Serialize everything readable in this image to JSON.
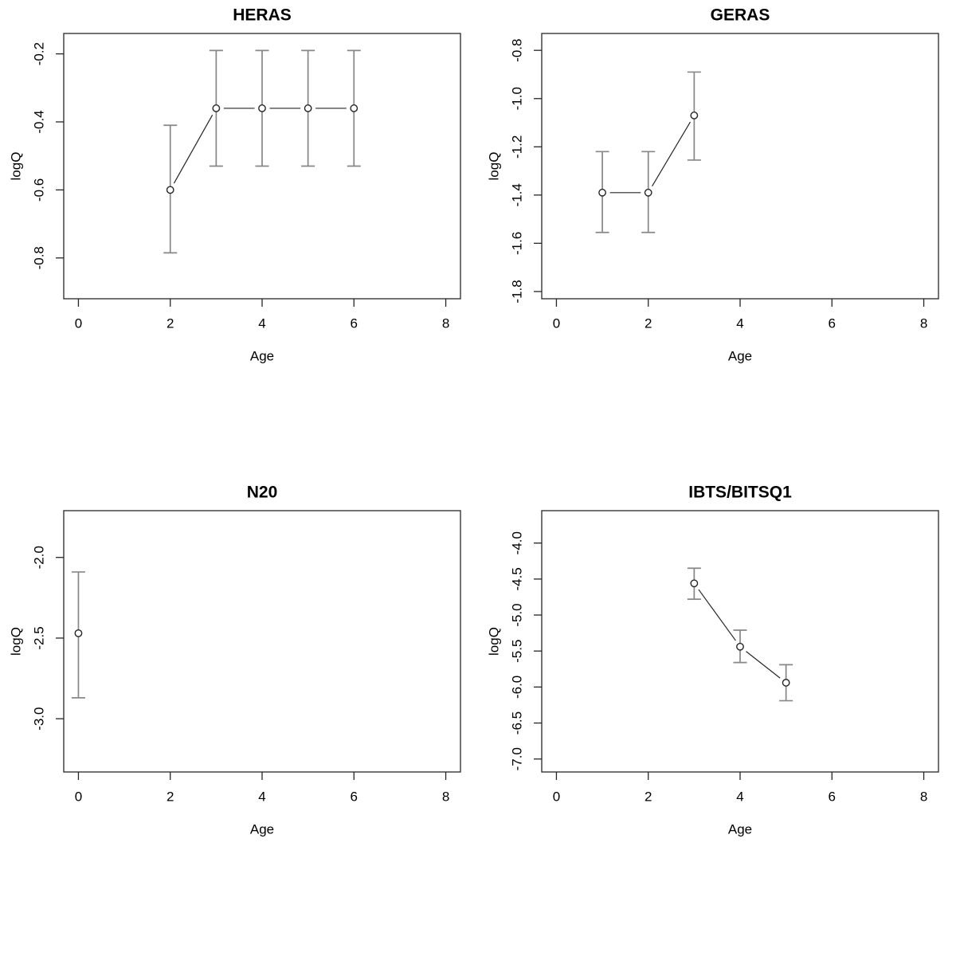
{
  "figure": {
    "background": "#ffffff",
    "frame_color": "#262626",
    "errorbar_color": "#878787",
    "point_color": "#262626",
    "point_fill": "#ffffff",
    "x_axis_label": "Age",
    "y_axis_label": "logQ"
  },
  "chart_data": [
    {
      "type": "scatter",
      "title": "HERAS",
      "xlabel": "Age",
      "ylabel": "logQ",
      "x": [
        2,
        3,
        4,
        5,
        6
      ],
      "y": [
        -0.6,
        -0.36,
        -0.36,
        -0.36,
        -0.36
      ],
      "y_lo": [
        -0.785,
        -0.53,
        -0.53,
        -0.53,
        -0.53
      ],
      "y_hi": [
        -0.41,
        -0.19,
        -0.19,
        -0.19,
        -0.19
      ],
      "x_ticks": [
        0,
        2,
        4,
        6,
        8
      ],
      "y_ticks": [
        -0.2,
        -0.4,
        -0.6,
        -0.8
      ],
      "xlim": [
        -0.32,
        8.32
      ],
      "ylim": [
        -0.92,
        -0.14
      ],
      "error_bars": true,
      "connect_points": true,
      "grid": false,
      "legend": "none"
    },
    {
      "type": "scatter",
      "title": "GERAS",
      "xlabel": "Age",
      "ylabel": "logQ",
      "x": [
        1,
        2,
        3
      ],
      "y": [
        -1.39,
        -1.39,
        -1.07
      ],
      "y_lo": [
        -1.555,
        -1.555,
        -1.255
      ],
      "y_hi": [
        -1.22,
        -1.22,
        -0.89
      ],
      "x_ticks": [
        0,
        2,
        4,
        6,
        8
      ],
      "y_ticks": [
        -0.8,
        -1.0,
        -1.2,
        -1.4,
        -1.6,
        -1.8
      ],
      "xlim": [
        -0.32,
        8.32
      ],
      "ylim": [
        -1.83,
        -0.73
      ],
      "error_bars": true,
      "connect_points": true,
      "grid": false,
      "legend": "none"
    },
    {
      "type": "scatter",
      "title": "N20",
      "xlabel": "Age",
      "ylabel": "logQ",
      "x": [
        0
      ],
      "y": [
        -2.47
      ],
      "y_lo": [
        -2.87
      ],
      "y_hi": [
        -2.09
      ],
      "x_ticks": [
        0,
        2,
        4,
        6,
        8
      ],
      "y_ticks": [
        -2.0,
        -2.5,
        -3.0
      ],
      "xlim": [
        -0.32,
        8.32
      ],
      "ylim": [
        -3.33,
        -1.71
      ],
      "error_bars": true,
      "connect_points": true,
      "grid": false,
      "legend": "none"
    },
    {
      "type": "scatter",
      "title": "IBTS/BITSQ1",
      "xlabel": "Age",
      "ylabel": "logQ",
      "x": [
        3,
        4,
        5
      ],
      "y": [
        -4.56,
        -5.44,
        -5.94
      ],
      "y_lo": [
        -4.78,
        -5.66,
        -6.19
      ],
      "y_hi": [
        -4.35,
        -5.21,
        -5.69
      ],
      "x_ticks": [
        0,
        2,
        4,
        6,
        8
      ],
      "y_ticks": [
        -4.0,
        -4.5,
        -5.0,
        -5.5,
        -6.0,
        -6.5,
        -7.0
      ],
      "xlim": [
        -0.32,
        8.32
      ],
      "ylim": [
        -7.18,
        -3.55
      ],
      "error_bars": true,
      "connect_points": true,
      "grid": false,
      "legend": "none"
    }
  ]
}
